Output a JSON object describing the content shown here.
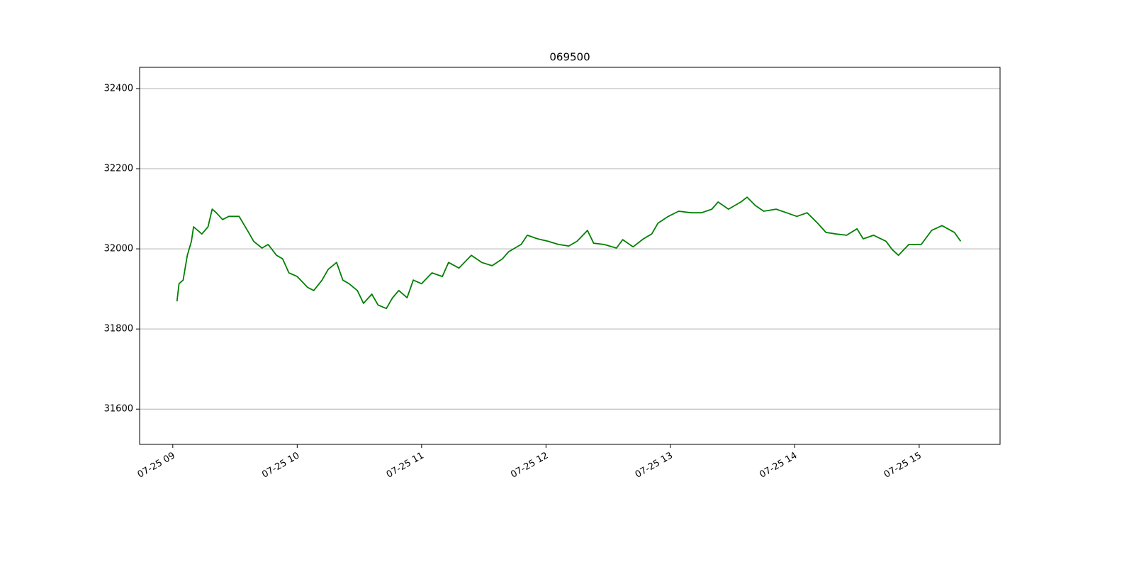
{
  "chart_data": {
    "type": "line",
    "title": "069500",
    "x": [
      "07-25 09:02",
      "07-25 09:03",
      "07-25 09:05",
      "07-25 09:07",
      "07-25 09:09",
      "07-25 09:10",
      "07-25 09:14",
      "07-25 09:17",
      "07-25 09:19",
      "07-25 09:21",
      "07-25 09:24",
      "07-25 09:27",
      "07-25 09:32",
      "07-25 09:36",
      "07-25 09:39",
      "07-25 09:43",
      "07-25 09:46",
      "07-25 09:50",
      "07-25 09:53",
      "07-25 09:56",
      "07-25 10:00",
      "07-25 10:05",
      "07-25 10:08",
      "07-25 10:12",
      "07-25 10:15",
      "07-25 10:19",
      "07-25 10:22",
      "07-25 10:25",
      "07-25 10:29",
      "07-25 10:32",
      "07-25 10:36",
      "07-25 10:39",
      "07-25 10:43",
      "07-25 10:46",
      "07-25 10:49",
      "07-25 10:53",
      "07-25 10:56",
      "07-25 11:00",
      "07-25 11:05",
      "07-25 11:10",
      "07-25 11:13",
      "07-25 11:18",
      "07-25 11:24",
      "07-25 11:29",
      "07-25 11:34",
      "07-25 11:39",
      "07-25 11:42",
      "07-25 11:48",
      "07-25 11:51",
      "07-25 11:56",
      "07-25 12:01",
      "07-25 12:06",
      "07-25 12:11",
      "07-25 12:15",
      "07-25 12:20",
      "07-25 12:23",
      "07-25 12:28",
      "07-25 12:34",
      "07-25 12:37",
      "07-25 12:42",
      "07-25 12:47",
      "07-25 12:51",
      "07-25 12:54",
      "07-25 12:59",
      "07-25 13:04",
      "07-25 13:10",
      "07-25 13:15",
      "07-25 13:20",
      "07-25 13:23",
      "07-25 13:28",
      "07-25 13:34",
      "07-25 13:37",
      "07-25 13:41",
      "07-25 13:45",
      "07-25 13:51",
      "07-25 13:56",
      "07-25 14:01",
      "07-25 14:06",
      "07-25 14:11",
      "07-25 14:15",
      "07-25 14:20",
      "07-25 14:25",
      "07-25 14:30",
      "07-25 14:33",
      "07-25 14:38",
      "07-25 14:44",
      "07-25 14:47",
      "07-25 14:50",
      "07-25 14:55",
      "07-25 15:01",
      "07-25 15:06",
      "07-25 15:11",
      "07-25 15:17",
      "07-25 15:20"
    ],
    "series": [
      {
        "name": "069500",
        "color": "#008000",
        "values": [
          31869,
          31913,
          31922,
          31984,
          32019,
          32055,
          32037,
          32055,
          32099,
          32090,
          32073,
          32081,
          32081,
          32046,
          32019,
          32002,
          32011,
          31984,
          31975,
          31940,
          31931,
          31904,
          31896,
          31922,
          31949,
          31966,
          31922,
          31913,
          31896,
          31864,
          31887,
          31860,
          31851,
          31878,
          31896,
          31878,
          31922,
          31913,
          31940,
          31931,
          31966,
          31952,
          31984,
          31966,
          31958,
          31975,
          31993,
          32011,
          32034,
          32025,
          32019,
          32011,
          32007,
          32019,
          32046,
          32014,
          32011,
          32002,
          32023,
          32005,
          32025,
          32037,
          32064,
          32081,
          32094,
          32090,
          32090,
          32099,
          32117,
          32099,
          32117,
          32129,
          32108,
          32094,
          32099,
          32090,
          32081,
          32090,
          32064,
          32041,
          32037,
          32034,
          32050,
          32025,
          32034,
          32019,
          31998,
          31984,
          32011,
          32011,
          32046,
          32058,
          32041,
          32019
        ]
      }
    ],
    "xlim": [
      "07-25 08:44",
      "07-25 15:39"
    ],
    "xticks": [
      {
        "value": "07-25 09:00",
        "label": "07-25 09"
      },
      {
        "value": "07-25 10:00",
        "label": "07-25 10"
      },
      {
        "value": "07-25 11:00",
        "label": "07-25 11"
      },
      {
        "value": "07-25 12:00",
        "label": "07-25 12"
      },
      {
        "value": "07-25 13:00",
        "label": "07-25 13"
      },
      {
        "value": "07-25 14:00",
        "label": "07-25 14"
      },
      {
        "value": "07-25 15:00",
        "label": "07-25 15"
      }
    ],
    "ylim": [
      31512,
      32453
    ],
    "yticks": [
      31600,
      31800,
      32000,
      32200,
      32400
    ],
    "grid": "y"
  }
}
